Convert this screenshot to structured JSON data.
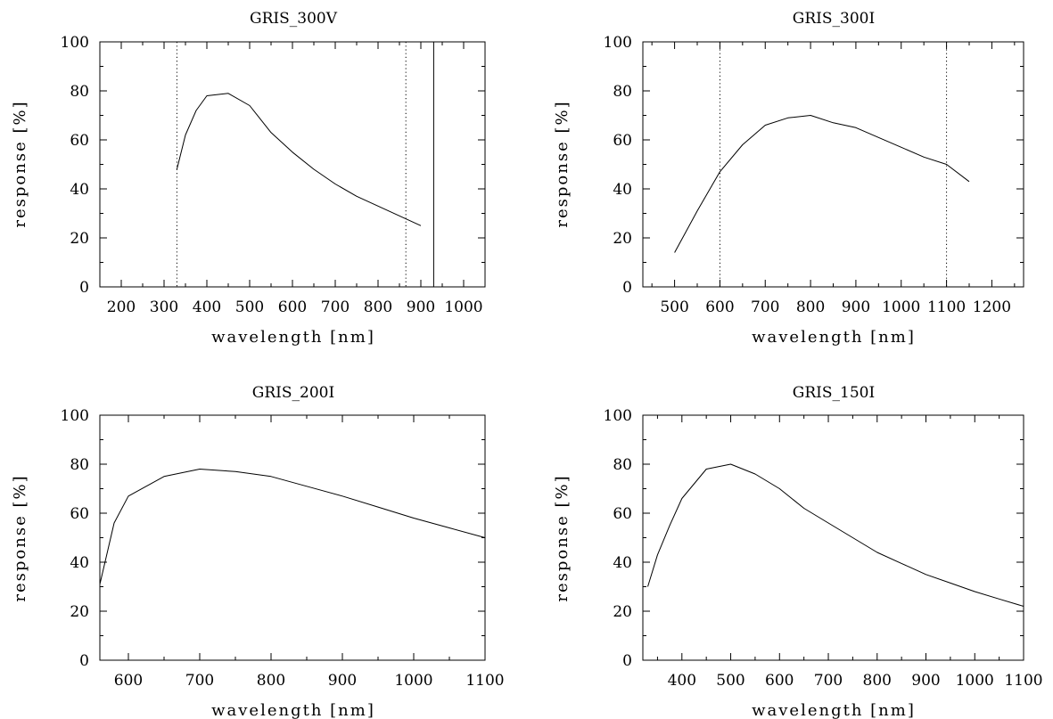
{
  "chart_data": [
    {
      "type": "line",
      "title": "GRIS_300V",
      "xlabel": "wavelength [nm]",
      "ylabel": "response [%]",
      "xlim": [
        150,
        1050
      ],
      "ylim": [
        0,
        100
      ],
      "xticks": [
        "200",
        "300",
        "400",
        "500",
        "600",
        "700",
        "800",
        "900",
        "1000"
      ],
      "yticks": [
        "0",
        "20",
        "40",
        "60",
        "80",
        "100"
      ],
      "vlines": [
        {
          "x": 330,
          "style": "dotted"
        },
        {
          "x": 865,
          "style": "dotted"
        },
        {
          "x": 930,
          "style": "solid"
        }
      ],
      "series": [
        {
          "x": [
            330,
            350,
            375,
            400,
            450,
            500,
            550,
            600,
            650,
            700,
            750,
            800,
            850,
            900
          ],
          "values": [
            48,
            62,
            72,
            78,
            79,
            74,
            63,
            55,
            48,
            42,
            37,
            33,
            29,
            25
          ]
        }
      ]
    },
    {
      "type": "line",
      "title": "GRIS_300I",
      "xlabel": "wavelength [nm]",
      "ylabel": "response [%]",
      "xlim": [
        430,
        1270
      ],
      "ylim": [
        0,
        100
      ],
      "xticks": [
        "500",
        "600",
        "700",
        "800",
        "900",
        "1000",
        "1100",
        "1200"
      ],
      "yticks": [
        "0",
        "20",
        "40",
        "60",
        "80",
        "100"
      ],
      "vlines": [
        {
          "x": 600,
          "style": "dotted"
        },
        {
          "x": 1100,
          "style": "dotted"
        }
      ],
      "series": [
        {
          "x": [
            500,
            550,
            600,
            650,
            700,
            750,
            800,
            850,
            900,
            950,
            1000,
            1050,
            1100,
            1150
          ],
          "values": [
            14,
            31,
            47,
            58,
            66,
            69,
            70,
            67,
            65,
            61,
            57,
            53,
            50,
            43
          ]
        }
      ]
    },
    {
      "type": "line",
      "title": "GRIS_200I",
      "xlabel": "wavelength [nm]",
      "ylabel": "response [%]",
      "xlim": [
        560,
        1100
      ],
      "ylim": [
        0,
        100
      ],
      "xticks": [
        "600",
        "700",
        "800",
        "900",
        "1000",
        "1100"
      ],
      "yticks": [
        "0",
        "20",
        "40",
        "60",
        "80",
        "100"
      ],
      "vlines": [],
      "series": [
        {
          "x": [
            560,
            580,
            600,
            650,
            700,
            750,
            800,
            850,
            900,
            950,
            1000,
            1050,
            1100
          ],
          "values": [
            31,
            56,
            67,
            75,
            78,
            77,
            75,
            71,
            67,
            62.5,
            58,
            54,
            50
          ]
        }
      ]
    },
    {
      "type": "line",
      "title": "GRIS_150I",
      "xlabel": "wavelength [nm]",
      "ylabel": "response [%]",
      "xlim": [
        320,
        1100
      ],
      "ylim": [
        0,
        100
      ],
      "xticks": [
        "400",
        "500",
        "600",
        "700",
        "800",
        "900",
        "1000",
        "1100"
      ],
      "yticks": [
        "0",
        "20",
        "40",
        "60",
        "80",
        "100"
      ],
      "vlines": [],
      "series": [
        {
          "x": [
            330,
            350,
            375,
            400,
            450,
            500,
            550,
            600,
            650,
            700,
            750,
            800,
            850,
            900,
            950,
            1000,
            1050,
            1100
          ],
          "values": [
            30,
            43,
            55,
            66,
            78,
            80,
            76,
            70,
            62,
            56,
            50,
            44,
            39.5,
            35,
            31.5,
            28,
            25,
            22
          ]
        }
      ]
    }
  ]
}
